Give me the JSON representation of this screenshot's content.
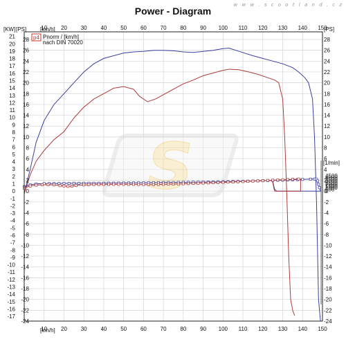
{
  "page": {
    "title": "Power - Diagram",
    "watermark_url": "w w w . s c o o t l a n d . c z",
    "logo_text": "S"
  },
  "chart_data": {
    "type": "line",
    "title": "Power - Diagram",
    "grid": true,
    "x_axis": {
      "label_left": "[km/h]",
      "label_bottom": "[km/h]",
      "range": [
        0,
        150
      ],
      "ticks": [
        10,
        20,
        30,
        40,
        50,
        60,
        70,
        80,
        90,
        100,
        110,
        120,
        130,
        140,
        150
      ]
    },
    "kw_axis": {
      "label": "[KW]",
      "range": [
        -17,
        21
      ],
      "ticks": [
        21,
        20,
        19,
        18,
        17,
        16,
        15,
        14,
        13,
        12,
        11,
        10,
        9,
        8,
        7,
        6,
        5,
        4,
        3,
        2,
        1,
        0,
        -1,
        -2,
        -3,
        -4,
        -5,
        -6,
        -7,
        -8,
        -9,
        -10,
        -11,
        -12,
        -13,
        -14,
        -15,
        -16,
        -17
      ]
    },
    "ps_axis": {
      "label": "[PS]",
      "range": [
        -24,
        28
      ],
      "ticks": [
        28,
        26,
        24,
        22,
        20,
        18,
        16,
        14,
        12,
        10,
        8,
        6,
        4,
        2,
        0,
        -2,
        -4,
        -6,
        -8,
        -10,
        -12,
        -14,
        -16,
        -18,
        -20,
        -22,
        -24
      ]
    },
    "ps_right_axis": {
      "label": "[PS]",
      "ticks": [
        28,
        26,
        24,
        22,
        20,
        18,
        16,
        14,
        12,
        10,
        8,
        6,
        4,
        2,
        0,
        -2,
        -4,
        -6,
        -8,
        -10,
        -12,
        -14,
        -16,
        -18,
        -20,
        -22,
        -24
      ]
    },
    "rpm_axis": {
      "label": "[1/min]",
      "range": [
        0,
        5000
      ],
      "ticks": [
        4500,
        4000,
        3500,
        3000,
        2500,
        2000,
        1500,
        1000,
        500,
        0
      ]
    },
    "legend": {
      "marker": "p4",
      "line1": "Pnorm / [km/h]",
      "line2": "nach DIN 70020",
      "placement": "top-left"
    },
    "series": [
      {
        "kind": "power",
        "color": "#3b3fa0",
        "points": [
          [
            0,
            -0.5
          ],
          [
            3,
            4
          ],
          [
            6,
            9
          ],
          [
            10,
            13
          ],
          [
            15,
            16
          ],
          [
            20,
            18
          ],
          [
            25,
            20
          ],
          [
            30,
            22
          ],
          [
            35,
            23.5
          ],
          [
            40,
            24.5
          ],
          [
            45,
            25
          ],
          [
            50,
            25.5
          ],
          [
            55,
            25.7
          ],
          [
            60,
            25.8
          ],
          [
            65,
            26
          ],
          [
            70,
            26
          ],
          [
            75,
            25.9
          ],
          [
            80,
            25.7
          ],
          [
            85,
            25.6
          ],
          [
            90,
            25.8
          ],
          [
            95,
            26
          ],
          [
            100,
            26.3
          ],
          [
            103,
            26.4
          ],
          [
            108,
            25.8
          ],
          [
            115,
            25
          ],
          [
            120,
            24.5
          ],
          [
            125,
            24
          ],
          [
            130,
            23.5
          ],
          [
            135,
            22.8
          ],
          [
            138,
            22
          ],
          [
            141,
            21
          ],
          [
            143,
            20
          ],
          [
            145,
            17
          ],
          [
            146,
            10
          ],
          [
            147,
            -2
          ],
          [
            148,
            -20
          ],
          [
            149,
            -24
          ]
        ]
      },
      {
        "kind": "power",
        "color": "#b03a3a",
        "points": [
          [
            0,
            -0.5
          ],
          [
            3,
            3
          ],
          [
            6,
            5.5
          ],
          [
            10,
            7.5
          ],
          [
            15,
            9.5
          ],
          [
            20,
            11
          ],
          [
            25,
            13.5
          ],
          [
            30,
            15.5
          ],
          [
            35,
            17
          ],
          [
            40,
            18
          ],
          [
            45,
            19
          ],
          [
            50,
            19.3
          ],
          [
            55,
            18.8
          ],
          [
            58,
            17.5
          ],
          [
            62,
            16.5
          ],
          [
            66,
            17
          ],
          [
            70,
            17.8
          ],
          [
            75,
            18.8
          ],
          [
            80,
            19.8
          ],
          [
            85,
            20.5
          ],
          [
            90,
            21.3
          ],
          [
            95,
            21.8
          ],
          [
            100,
            22.3
          ],
          [
            103,
            22.5
          ],
          [
            108,
            22.4
          ],
          [
            113,
            22
          ],
          [
            118,
            21.5
          ],
          [
            122,
            21
          ],
          [
            126,
            20.5
          ],
          [
            128,
            20
          ],
          [
            130,
            17
          ],
          [
            131,
            10
          ],
          [
            132,
            0
          ],
          [
            133,
            -12
          ],
          [
            134,
            -20
          ],
          [
            135,
            -22
          ],
          [
            136,
            -23
          ]
        ]
      },
      {
        "kind": "rpm",
        "color": "#3b3fa0",
        "markers": true,
        "points": [
          [
            0,
            1250
          ],
          [
            3,
            1850
          ],
          [
            6,
            2100
          ],
          [
            10,
            2200
          ],
          [
            15,
            2230
          ],
          [
            20,
            2260
          ],
          [
            25,
            2290
          ],
          [
            30,
            2300
          ],
          [
            35,
            2310
          ],
          [
            40,
            2330
          ],
          [
            45,
            2350
          ],
          [
            50,
            2380
          ],
          [
            55,
            2410
          ],
          [
            60,
            2440
          ],
          [
            65,
            2470
          ],
          [
            70,
            2500
          ],
          [
            75,
            2540
          ],
          [
            80,
            2580
          ],
          [
            85,
            2620
          ],
          [
            90,
            2660
          ],
          [
            95,
            2700
          ],
          [
            100,
            2750
          ],
          [
            105,
            2810
          ],
          [
            110,
            2880
          ],
          [
            115,
            2960
          ],
          [
            120,
            3050
          ],
          [
            125,
            3140
          ],
          [
            130,
            3230
          ],
          [
            135,
            3330
          ],
          [
            140,
            3430
          ],
          [
            144,
            3520
          ],
          [
            146,
            3550
          ],
          [
            147,
            3520
          ],
          [
            147.5,
            3000
          ],
          [
            148,
            2000
          ],
          [
            148.5,
            1000
          ],
          [
            149,
            0
          ],
          [
            148,
            0
          ],
          [
            145,
            0
          ],
          [
            140,
            0
          ],
          [
            135,
            0
          ],
          [
            130,
            0
          ],
          [
            127,
            0
          ],
          [
            126,
            500
          ],
          [
            125.5,
            1500
          ],
          [
            125,
            3000
          ]
        ]
      },
      {
        "kind": "rpm",
        "color": "#b03a3a",
        "markers": true,
        "points": [
          [
            0,
            900
          ],
          [
            3,
            1500
          ],
          [
            6,
            1750
          ],
          [
            9,
            1850
          ],
          [
            12,
            1850
          ],
          [
            15,
            1800
          ],
          [
            18,
            1600
          ],
          [
            20,
            1500
          ],
          [
            22,
            1380
          ],
          [
            24,
            1450
          ],
          [
            26,
            1650
          ],
          [
            30,
            1800
          ],
          [
            35,
            1900
          ],
          [
            40,
            1950
          ],
          [
            45,
            1970
          ],
          [
            50,
            1980
          ],
          [
            55,
            1960
          ],
          [
            60,
            1920
          ],
          [
            65,
            1900
          ],
          [
            70,
            1980
          ],
          [
            75,
            2060
          ],
          [
            80,
            2150
          ],
          [
            85,
            2250
          ],
          [
            90,
            2350
          ],
          [
            95,
            2450
          ],
          [
            100,
            2560
          ],
          [
            105,
            2680
          ],
          [
            110,
            2800
          ],
          [
            115,
            2930
          ],
          [
            120,
            3060
          ],
          [
            125,
            3200
          ],
          [
            130,
            3330
          ],
          [
            135,
            3470
          ],
          [
            138,
            3550
          ],
          [
            139,
            3500
          ],
          [
            139,
            2000
          ],
          [
            139,
            0
          ],
          [
            136,
            0
          ],
          [
            132,
            0
          ],
          [
            128,
            0
          ],
          [
            126,
            0
          ],
          [
            125.5,
            1000
          ],
          [
            125,
            2500
          ],
          [
            124.5,
            3200
          ]
        ]
      }
    ]
  }
}
